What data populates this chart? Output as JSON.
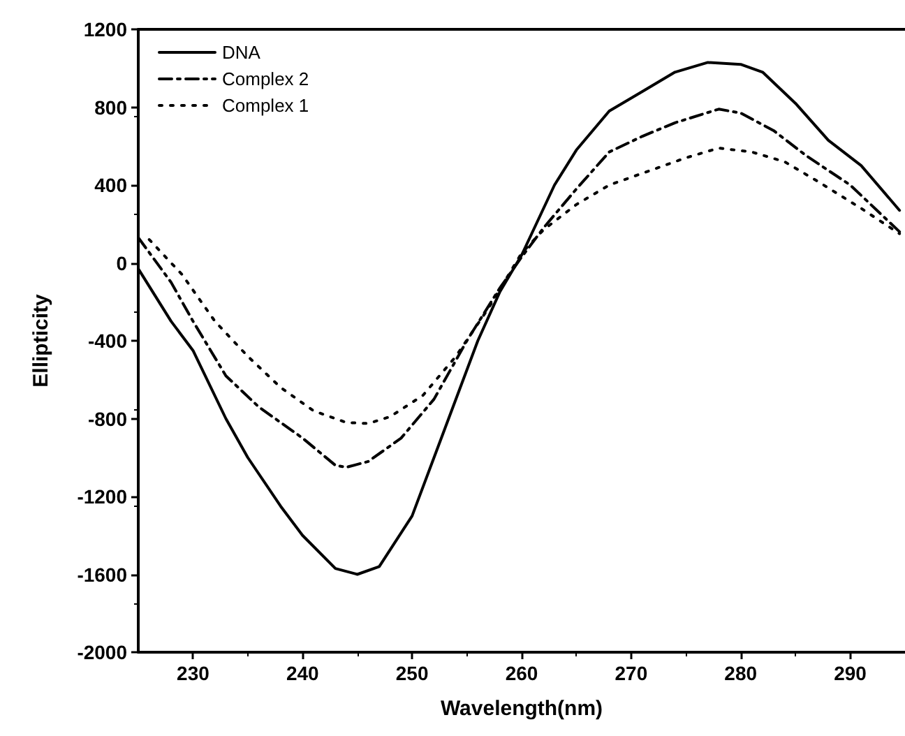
{
  "chart_data": {
    "type": "line",
    "xlabel": "Wavelength(nm)",
    "ylabel": "Ellipticity",
    "xlim": [
      225,
      295
    ],
    "xticks": [
      230,
      240,
      250,
      260,
      270,
      280,
      290
    ],
    "ylim": [
      -2000,
      1200
    ],
    "yticks": [
      -2000,
      -1600,
      -1200,
      -800,
      -400,
      0,
      400,
      800,
      1200
    ],
    "grid": false,
    "legend": "top left",
    "marker": "none",
    "series": [
      {
        "name": "DNA",
        "color": "#000000",
        "line_style": "solid",
        "x": [
          225,
          228,
          230,
          233,
          235,
          238,
          240,
          243,
          245,
          247,
          250,
          253,
          256,
          258,
          260,
          263,
          265,
          268,
          271,
          274,
          277,
          280,
          282,
          285,
          288,
          291,
          294.5
        ],
        "values": [
          -30,
          -300,
          -450,
          -800,
          -1000,
          -1250,
          -1400,
          -1570,
          -1600,
          -1560,
          -1300,
          -850,
          -400,
          -150,
          40,
          400,
          580,
          780,
          880,
          980,
          1030,
          1020,
          980,
          820,
          630,
          500,
          270
        ]
      },
      {
        "name": "Complex 2",
        "color": "#000000",
        "line_style": "dashed",
        "x": [
          225,
          228,
          230,
          233,
          236,
          240,
          243,
          244,
          246,
          249,
          252,
          255,
          258,
          260,
          262,
          265,
          268,
          271,
          274,
          278,
          280,
          283,
          286,
          290,
          294.5
        ],
        "values": [
          130,
          -100,
          -300,
          -580,
          -740,
          -900,
          -1040,
          -1050,
          -1020,
          -900,
          -700,
          -400,
          -130,
          30,
          180,
          380,
          570,
          650,
          720,
          790,
          770,
          680,
          550,
          400,
          160
        ]
      },
      {
        "name": "Complex 1",
        "color": "#000000",
        "line_style": "dotted",
        "x": [
          226,
          229,
          232,
          235,
          238,
          241,
          244,
          246,
          248,
          251,
          254,
          257,
          260,
          262,
          265,
          268,
          271,
          275,
          278,
          281,
          284,
          287,
          291,
          294.5
        ],
        "values": [
          120,
          -60,
          -300,
          -480,
          -640,
          -760,
          -820,
          -825,
          -790,
          -680,
          -480,
          -230,
          50,
          170,
          300,
          400,
          460,
          540,
          590,
          570,
          520,
          420,
          280,
          150
        ]
      }
    ]
  }
}
